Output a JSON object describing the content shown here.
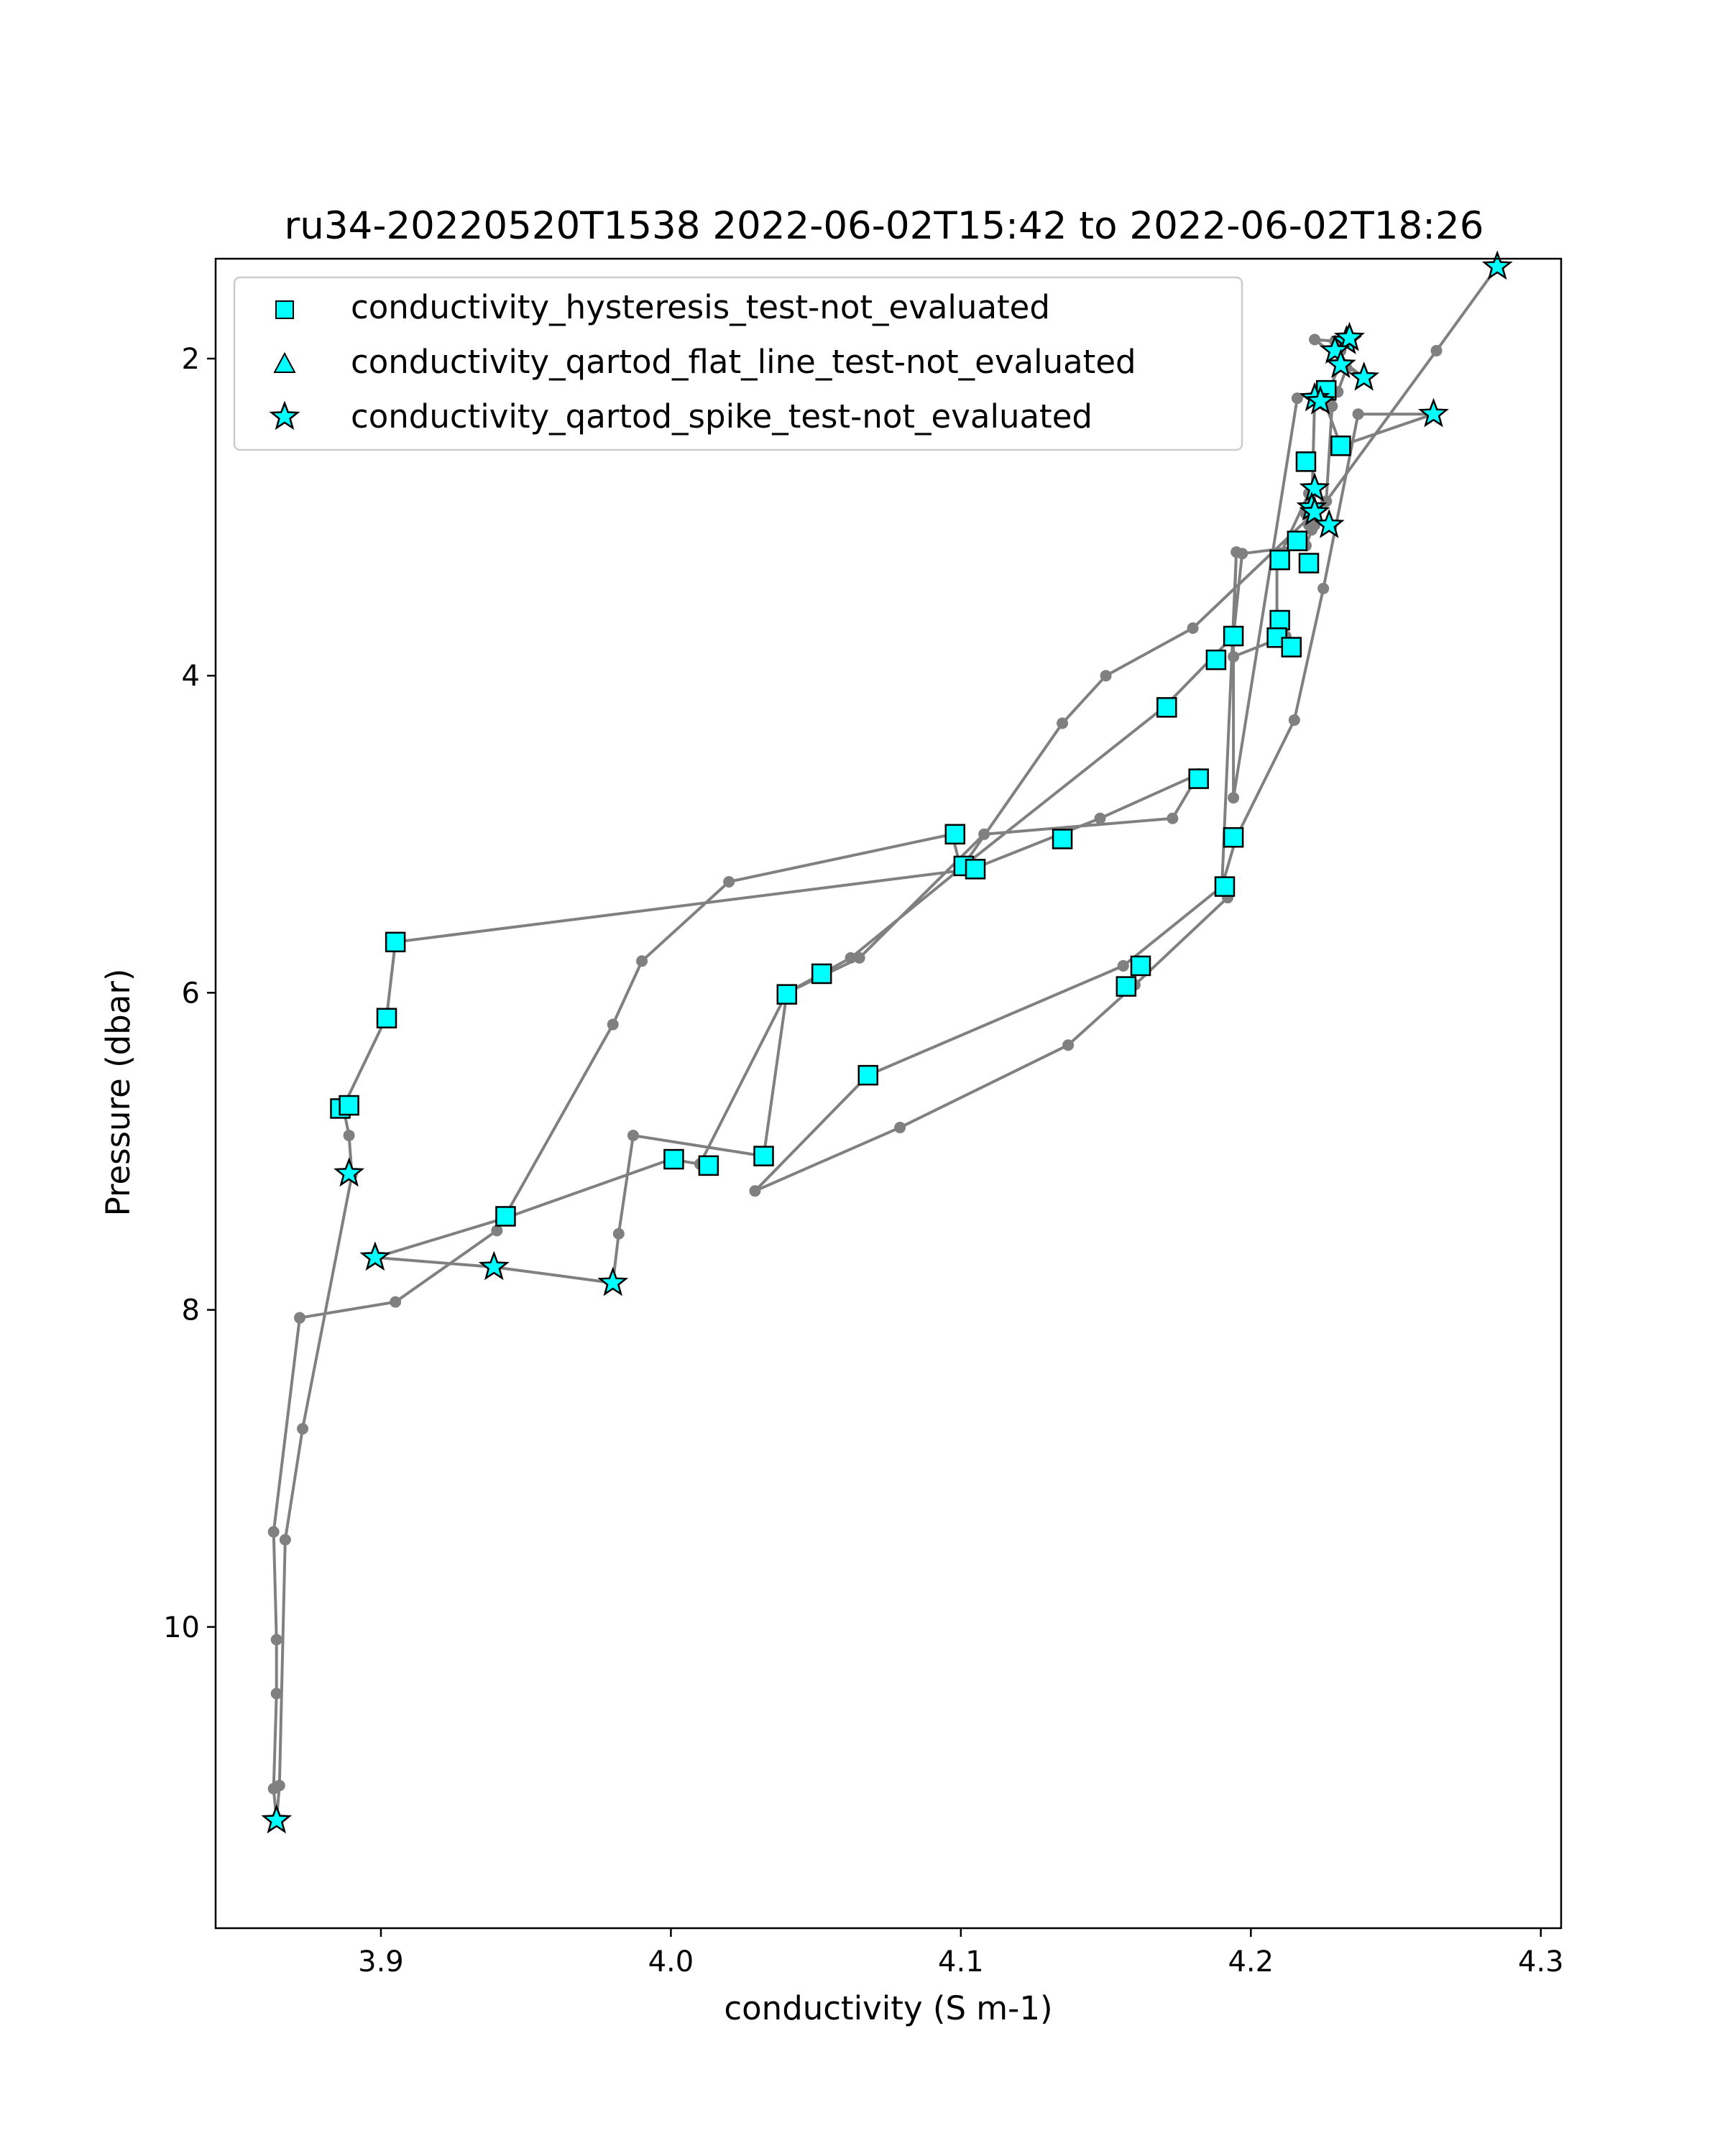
{
  "chart_data": {
    "type": "scatter",
    "title": "ru34-20220520T1538 2022-06-02T15:42 to 2022-06-02T18:26",
    "xlabel": "conductivity (S m-1)",
    "ylabel": "Pressure (dbar)",
    "xlim": [
      3.843,
      4.307
    ],
    "ylim": [
      11.9,
      1.37
    ],
    "y_inverted": true,
    "xticks": [
      3.9,
      4.0,
      4.1,
      4.2,
      4.3
    ],
    "xtick_labels": [
      "3.9",
      "4.0",
      "4.1",
      "4.2",
      "4.3"
    ],
    "yticks": [
      2,
      4,
      6,
      8,
      10
    ],
    "ytick_labels": [
      "2",
      "4",
      "6",
      "8",
      "10"
    ],
    "grid": false,
    "legend_position": "upper-left",
    "colors": {
      "profile_line": "#808080",
      "marker_fill": "#00ffff",
      "marker_edge": "#000000"
    },
    "profile": {
      "x": [
        4.285,
        4.264,
        4.226,
        4.18,
        4.15,
        4.135,
        4.1,
        4.097,
        4.02,
        3.99,
        3.98,
        3.94,
        3.905,
        3.872,
        3.863,
        3.864,
        3.864,
        3.863,
        3.864,
        3.865,
        3.867,
        3.873,
        3.89,
        3.889,
        3.887,
        3.902,
        3.905,
        4.104,
        4.148,
        4.182,
        4.173,
        4.108,
        4.065,
        4.04,
        4.01,
        4.0,
        3.943,
        3.898,
        3.939,
        3.98,
        3.982,
        3.987,
        4.032,
        4.04,
        4.052,
        4.062,
        4.101,
        4.17,
        4.194,
        4.195,
        4.19,
        4.192,
        4.16,
        4.137,
        4.079,
        4.029,
        4.068,
        4.156,
        4.19,
        4.195,
        4.215,
        4.225,
        4.237,
        4.263,
        4.231,
        4.224,
        4.216,
        4.194,
        4.194,
        4.197,
        4.219,
        4.221,
        4.222,
        4.219,
        4.221,
        4.222,
        4.226,
        4.228,
        4.23,
        4.233,
        4.231,
        4.229,
        4.222,
        4.239,
        4.231,
        4.227,
        4.222,
        4.221,
        4.22,
        4.22,
        4.209,
        4.209,
        4.212,
        4.194
      ],
      "y": [
        1.42,
        1.95,
        2.9,
        3.7,
        4.0,
        4.3,
        5.22,
        5.0,
        5.3,
        5.8,
        6.2,
        7.5,
        7.95,
        8.05,
        9.4,
        10.08,
        10.42,
        11.02,
        11.22,
        11.0,
        9.45,
        8.75,
        7.15,
        6.9,
        6.72,
        6.15,
        5.68,
        5.22,
        4.9,
        4.62,
        4.9,
        5.0,
        5.78,
        6.0,
        7.08,
        7.05,
        7.42,
        7.67,
        7.73,
        7.83,
        7.52,
        6.9,
        7.03,
        6.0,
        5.88,
        5.78,
        5.2,
        4.2,
        3.75,
        3.22,
        5.33,
        5.4,
        5.95,
        6.33,
        6.85,
        7.25,
        6.52,
        5.83,
        5.33,
        5.02,
        4.28,
        3.45,
        2.35,
        2.35,
        2.55,
        2.2,
        2.25,
        4.77,
        3.75,
        3.23,
        3.18,
        3.08,
        3.05,
        2.98,
        2.93,
        2.84,
        2.9,
        2.3,
        2.21,
        2.06,
        1.95,
        1.89,
        1.88,
        2.12,
        2.02,
        2.2,
        2.25,
        2.97,
        3.05,
        2.85,
        3.28,
        3.65,
        3.75,
        3.88
      ]
    },
    "series": [
      {
        "name": "conductivity_hysteresis_test-not_evaluated",
        "marker": "square",
        "x": [
          4.171,
          4.098,
          4.101,
          4.105,
          4.135,
          4.182,
          4.194,
          4.191,
          4.162,
          4.157,
          4.068,
          4.052,
          4.04,
          4.001,
          4.013,
          4.032,
          3.943,
          3.886,
          3.889,
          3.902,
          3.905,
          4.188,
          4.194,
          4.21,
          4.209,
          4.214,
          4.21,
          4.216,
          4.22,
          4.219,
          4.226,
          4.231
        ],
        "y": [
          4.2,
          5.0,
          5.2,
          5.22,
          5.03,
          4.65,
          5.02,
          5.33,
          5.83,
          5.96,
          6.52,
          5.88,
          6.01,
          7.05,
          7.09,
          7.03,
          7.41,
          6.73,
          6.71,
          6.16,
          5.68,
          3.9,
          3.75,
          3.65,
          3.76,
          3.82,
          3.27,
          3.15,
          3.29,
          2.65,
          2.2,
          2.55
        ]
      },
      {
        "name": "conductivity_qartod_flat_line_test-not_evaluated",
        "marker": "triangle",
        "x": [],
        "y": []
      },
      {
        "name": "conductivity_qartod_spike_test-not_evaluated",
        "marker": "star",
        "x": [
          4.285,
          4.263,
          4.239,
          4.233,
          4.234,
          4.229,
          4.231,
          4.222,
          4.224,
          4.222,
          4.221,
          4.222,
          4.227,
          3.98,
          3.939,
          3.898,
          3.889,
          3.864
        ],
        "y": [
          1.42,
          2.35,
          2.12,
          1.89,
          1.87,
          1.95,
          2.04,
          2.25,
          2.27,
          2.82,
          2.94,
          2.97,
          3.05,
          7.83,
          7.73,
          7.67,
          7.14,
          11.22
        ]
      }
    ]
  }
}
